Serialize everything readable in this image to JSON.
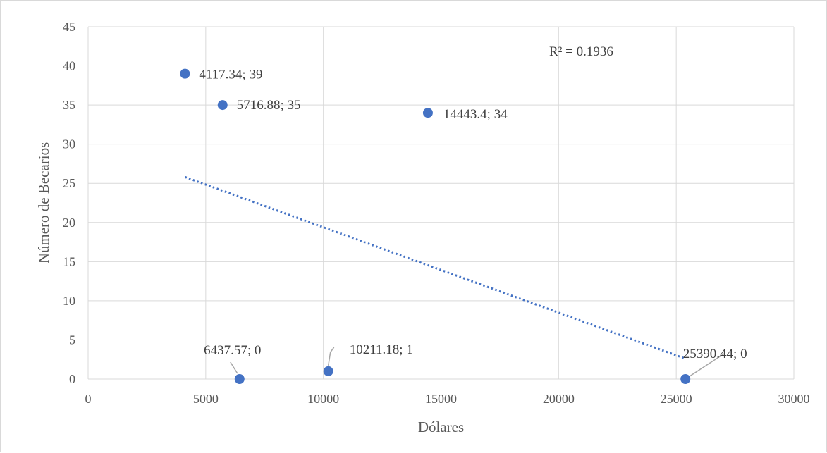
{
  "chart_data": {
    "type": "scatter",
    "title": "",
    "xlabel": "Dólares",
    "ylabel": "Número de Becarios",
    "xlim": [
      0,
      30000
    ],
    "ylim": [
      0,
      45
    ],
    "x_ticks": [
      0,
      5000,
      10000,
      15000,
      20000,
      25000,
      30000
    ],
    "y_ticks": [
      0,
      5,
      10,
      15,
      20,
      25,
      30,
      35,
      40,
      45
    ],
    "grid": true,
    "legend": "none",
    "marker_color": "#4472c4",
    "points": [
      {
        "x": 4117.34,
        "y": 39,
        "label": "4117.34; 39"
      },
      {
        "x": 5716.88,
        "y": 35,
        "label": "5716.88; 35"
      },
      {
        "x": 14443.4,
        "y": 34,
        "label": "14443.4; 34"
      },
      {
        "x": 6437.57,
        "y": 0,
        "label": "6437.57; 0"
      },
      {
        "x": 10211.18,
        "y": 1,
        "label": "10211.18; 1"
      },
      {
        "x": 25390.44,
        "y": 0,
        "label": "25390.44; 0"
      }
    ],
    "trendline": {
      "type": "linear",
      "style": "dotted",
      "color": "#4472c4",
      "x_start": 4117.34,
      "y_start": 25.8,
      "x_end": 25390.44,
      "y_end": 2.6,
      "r_squared_label": "R² = 0.1936"
    }
  }
}
